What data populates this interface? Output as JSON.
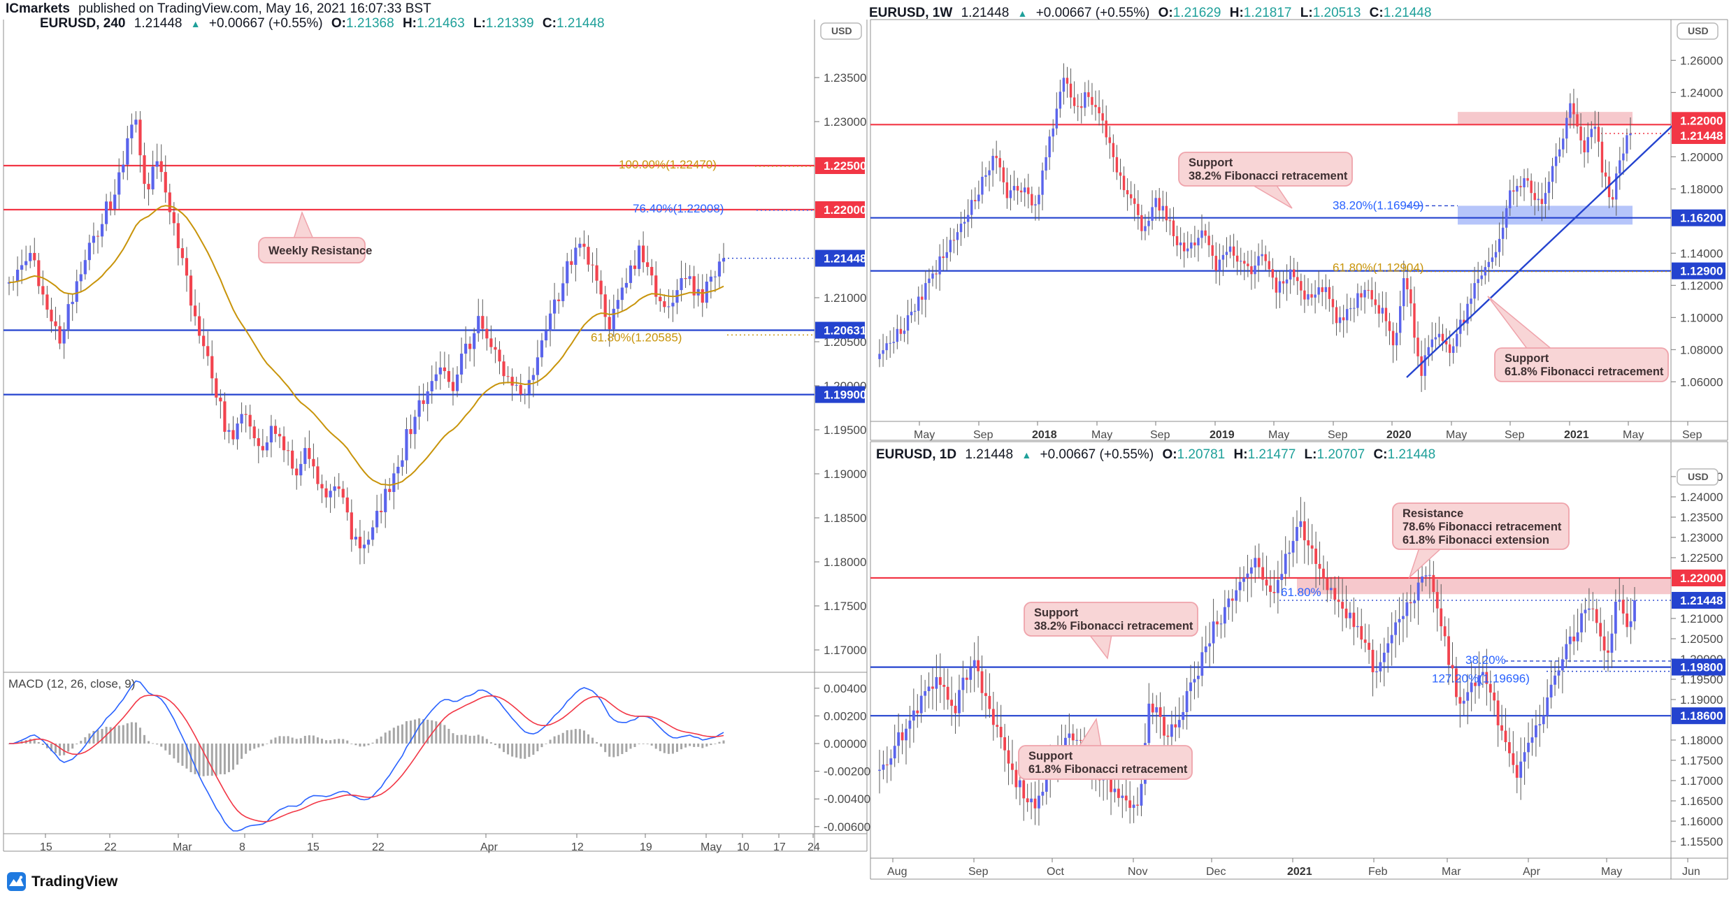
{
  "header": {
    "byline_bold": "ICmarkets",
    "byline_rest": " published on TradingView.com, May 16, 2021 16:07:33 BST"
  },
  "logo_text": "TradingView",
  "currency_button": "USD",
  "macd_title": "MACD (12, 26, close, 9)",
  "colors": {
    "up_candle": "#5a64ec",
    "down_candle": "#f2434e",
    "ma_line": "#c8940a",
    "red_line": "#f23645",
    "blue_line": "#2443cf",
    "gold_text": "#c8940a",
    "blue_text": "#2962ff",
    "teal": "#1fa09a",
    "callout_fill": "#f8d5d6",
    "callout_border": "#efa3ab",
    "pink_zone": "rgba(239,154,163,0.55)",
    "blue_zone": "rgba(109,140,245,0.5)",
    "macd_line": "#2962ff",
    "signal_line": "#f23645",
    "hist": "#6b6b6b"
  },
  "chart_data": [
    {
      "id": "h4",
      "type": "candlestick",
      "symbol": "EURUSD",
      "timeframe": "240",
      "header": {
        "symbol": "EURUSD, 240",
        "price": "1.21448",
        "up": "▲",
        "change": "+0.00667 (+0.55%)",
        "o_label": "O:",
        "o": "1.21368",
        "h_label": "H:",
        "h": "1.21463",
        "l_label": "L:",
        "l": "1.21339",
        "c_label": "C:",
        "c": "1.21448"
      },
      "n": 170,
      "last": 1.21448,
      "anchors": [
        [
          0,
          1.2115
        ],
        [
          0.03,
          1.2148
        ],
        [
          0.055,
          1.2085
        ],
        [
          0.07,
          1.2053
        ],
        [
          0.1,
          1.2135
        ],
        [
          0.13,
          1.219
        ],
        [
          0.155,
          1.2235
        ],
        [
          0.175,
          1.2308
        ],
        [
          0.19,
          1.222
        ],
        [
          0.21,
          1.2258
        ],
        [
          0.23,
          1.218
        ],
        [
          0.25,
          1.211
        ],
        [
          0.27,
          1.205
        ],
        [
          0.29,
          1.199
        ],
        [
          0.31,
          1.1935
        ],
        [
          0.33,
          1.1968
        ],
        [
          0.35,
          1.192
        ],
        [
          0.37,
          1.1955
        ],
        [
          0.4,
          1.19
        ],
        [
          0.42,
          1.1928
        ],
        [
          0.44,
          1.1868
        ],
        [
          0.46,
          1.1885
        ],
        [
          0.48,
          1.183
        ],
        [
          0.5,
          1.1818
        ],
        [
          0.52,
          1.186
        ],
        [
          0.54,
          1.19
        ],
        [
          0.56,
          1.195
        ],
        [
          0.58,
          1.199
        ],
        [
          0.6,
          1.2028
        ],
        [
          0.62,
          1.2
        ],
        [
          0.64,
          1.204
        ],
        [
          0.66,
          1.2078
        ],
        [
          0.68,
          1.204
        ],
        [
          0.7,
          1.2
        ],
        [
          0.72,
          1.1982
        ],
        [
          0.74,
          1.203
        ],
        [
          0.76,
          1.208
        ],
        [
          0.78,
          1.213
        ],
        [
          0.8,
          1.2165
        ],
        [
          0.82,
          1.2118
        ],
        [
          0.84,
          1.2066
        ],
        [
          0.86,
          1.211
        ],
        [
          0.88,
          1.2152
        ],
        [
          0.9,
          1.2118
        ],
        [
          0.92,
          1.2082
        ],
        [
          0.94,
          1.2128
        ],
        [
          0.97,
          1.2098
        ],
        [
          1,
          1.2145
        ]
      ],
      "axis_labels": [
        {
          "t": "1.23500",
          "p": 1.235
        },
        {
          "t": "1.23000",
          "p": 1.23
        },
        {
          "t": "1.21000",
          "p": 1.21
        },
        {
          "t": "1.20500",
          "p": 1.205
        },
        {
          "t": "1.20000",
          "p": 1.2
        },
        {
          "t": "1.19500",
          "p": 1.195
        },
        {
          "t": "1.19000",
          "p": 1.19
        },
        {
          "t": "1.18500",
          "p": 1.185
        },
        {
          "t": "1.18000",
          "p": 1.18
        },
        {
          "t": "1.17500",
          "p": 1.175
        },
        {
          "t": "1.17000",
          "p": 1.17
        }
      ],
      "tags": [
        {
          "t": "1.22500",
          "p": 1.225,
          "c": "red"
        },
        {
          "t": "1.22000",
          "p": 1.22,
          "c": "red"
        },
        {
          "t": "1.21448",
          "p": 1.21448,
          "c": "blue"
        },
        {
          "t": "1.20631",
          "p": 1.20631,
          "c": "blue"
        },
        {
          "t": "1.19900",
          "p": 1.199,
          "c": "blue"
        }
      ],
      "hlines": [
        {
          "p": 1.225,
          "c": "red",
          "s": "solid"
        },
        {
          "p": 1.22,
          "c": "red",
          "s": "solid"
        },
        {
          "p": 1.20631,
          "c": "blue",
          "s": "solid"
        },
        {
          "p": 1.199,
          "c": "blue",
          "s": "solid"
        },
        {
          "p": 1.21448,
          "c": "blue",
          "s": "dotted"
        }
      ],
      "fib_texts": [
        {
          "t": "100.00%(1.22470)",
          "p": 1.225,
          "c": "gold"
        },
        {
          "t": "76.40%(1.22008)",
          "p": 1.22,
          "c": "blue"
        },
        {
          "t": "61.80%(1.20585)",
          "p": 1.20585,
          "c": "gold"
        }
      ],
      "zones": [],
      "callouts": [
        {
          "lines": [
            "Weekly Resistance"
          ]
        }
      ],
      "time_labels": [
        "15",
        "22",
        "Mar",
        "8",
        "15",
        "22",
        "Apr",
        "12",
        "19",
        "May",
        "10",
        "17",
        "24"
      ],
      "macd_ticks": [
        {
          "t": "0.00400",
          "v": 0.004
        },
        {
          "t": "0.00200",
          "v": 0.002
        },
        {
          "t": "0.00000",
          "v": 0
        },
        {
          "t": "-0.00200",
          "v": -0.002
        },
        {
          "t": "-0.00400",
          "v": -0.004
        },
        {
          "t": "-0.00600",
          "v": -0.006
        }
      ]
    },
    {
      "id": "weekly",
      "type": "candlestick",
      "symbol": "EURUSD",
      "timeframe": "1W",
      "header": {
        "symbol": "EURUSD, 1W",
        "price": "1.21448",
        "up": "▲",
        "change": "+0.00667 (+0.55%)",
        "o_label": "O:",
        "o": "1.21629",
        "h_label": "H:",
        "h": "1.21817",
        "l_label": "L:",
        "l": "1.20513",
        "c_label": "C:",
        "c": "1.21448"
      },
      "n": 213,
      "last": 1.21448,
      "anchors": [
        [
          0,
          1.076
        ],
        [
          0.03,
          1.092
        ],
        [
          0.07,
          1.125
        ],
        [
          0.1,
          1.152
        ],
        [
          0.13,
          1.178
        ],
        [
          0.155,
          1.2
        ],
        [
          0.17,
          1.176
        ],
        [
          0.19,
          1.182
        ],
        [
          0.205,
          1.166
        ],
        [
          0.22,
          1.196
        ],
        [
          0.245,
          1.25
        ],
        [
          0.26,
          1.228
        ],
        [
          0.275,
          1.238
        ],
        [
          0.29,
          1.232
        ],
        [
          0.31,
          1.2
        ],
        [
          0.33,
          1.176
        ],
        [
          0.35,
          1.157
        ],
        [
          0.37,
          1.172
        ],
        [
          0.39,
          1.153
        ],
        [
          0.41,
          1.141
        ],
        [
          0.43,
          1.151
        ],
        [
          0.45,
          1.131
        ],
        [
          0.47,
          1.142
        ],
        [
          0.49,
          1.128
        ],
        [
          0.51,
          1.136
        ],
        [
          0.53,
          1.118
        ],
        [
          0.55,
          1.129
        ],
        [
          0.57,
          1.111
        ],
        [
          0.59,
          1.12
        ],
        [
          0.61,
          1.098
        ],
        [
          0.63,
          1.108
        ],
        [
          0.65,
          1.116
        ],
        [
          0.67,
          1.102
        ],
        [
          0.685,
          1.082
        ],
        [
          0.7,
          1.128
        ],
        [
          0.72,
          1.066
        ],
        [
          0.74,
          1.088
        ],
        [
          0.76,
          1.082
        ],
        [
          0.78,
          1.102
        ],
        [
          0.8,
          1.126
        ],
        [
          0.82,
          1.142
        ],
        [
          0.84,
          1.176
        ],
        [
          0.86,
          1.186
        ],
        [
          0.88,
          1.172
        ],
        [
          0.9,
          1.196
        ],
        [
          0.92,
          1.232
        ],
        [
          0.93,
          1.216
        ],
        [
          0.94,
          1.205
        ],
        [
          0.95,
          1.222
        ],
        [
          0.965,
          1.188
        ],
        [
          0.975,
          1.175
        ],
        [
          0.99,
          1.205
        ],
        [
          1,
          1.2145
        ]
      ],
      "axis_labels": [
        {
          "t": "1.26000",
          "p": 1.26
        },
        {
          "t": "1.24000",
          "p": 1.24
        },
        {
          "t": "1.20000",
          "p": 1.2
        },
        {
          "t": "1.18000",
          "p": 1.18
        },
        {
          "t": "1.14000",
          "p": 1.14
        },
        {
          "t": "1.12000",
          "p": 1.12
        },
        {
          "t": "1.10000",
          "p": 1.1
        },
        {
          "t": "1.08000",
          "p": 1.08
        },
        {
          "t": "1.06000",
          "p": 1.06
        }
      ],
      "tags": [
        {
          "t": "1.22000",
          "p": 1.22,
          "c": "red",
          "oy": -6
        },
        {
          "t": "1.21448",
          "p": 1.21448,
          "c": "red",
          "oy": 3
        },
        {
          "t": "1.16200",
          "p": 1.162,
          "c": "blue"
        },
        {
          "t": "1.12900",
          "p": 1.129,
          "c": "blue"
        }
      ],
      "hlines": [
        {
          "p": 1.22,
          "c": "red",
          "s": "solid"
        },
        {
          "p": 1.162,
          "c": "blue",
          "s": "solid"
        },
        {
          "p": 1.129,
          "c": "blue",
          "s": "solid"
        },
        {
          "p": 1.16949,
          "c": "blue",
          "s": "dashed"
        },
        {
          "p": 1.21448,
          "c": "red",
          "s": "dotted"
        }
      ],
      "fib_texts": [
        {
          "t": "38.20%(1.16949)",
          "p": 1.16949,
          "c": "blue"
        },
        {
          "t": "61.80%(1.12904)",
          "p": 1.129,
          "c": "gold"
        }
      ],
      "zones": [
        {
          "p1": 1.2279,
          "p2": 1.22,
          "c": "pink"
        },
        {
          "p1": 1.1695,
          "p2": 1.1578,
          "c": "blue"
        }
      ],
      "callouts": [
        {
          "lines": [
            "Support",
            "38.2% Fibonacci retracement"
          ]
        },
        {
          "lines": [
            "Support",
            "61.8% Fibonacci retracement"
          ]
        }
      ],
      "time_labels": [
        "May",
        "Sep",
        "2018",
        "May",
        "Sep",
        "2019",
        "May",
        "Sep",
        "2020",
        "May",
        "Sep",
        "2021",
        "May",
        "Sep"
      ]
    },
    {
      "id": "daily",
      "type": "candlestick",
      "symbol": "EURUSD",
      "timeframe": "1D",
      "header": {
        "symbol": "EURUSD, 1D",
        "price": "1.21448",
        "up": "▲",
        "change": "+0.00667 (+0.55%)",
        "o_label": "O:",
        "o": "1.20781",
        "h_label": "H:",
        "h": "1.21477",
        "l_label": "L:",
        "l": "1.20707",
        "c_label": "C:",
        "c": "1.21448"
      },
      "n": 200,
      "last": 1.21448,
      "anchors": [
        [
          0,
          1.172
        ],
        [
          0.04,
          1.185
        ],
        [
          0.075,
          1.195
        ],
        [
          0.1,
          1.188
        ],
        [
          0.123,
          1.2
        ],
        [
          0.15,
          1.186
        ],
        [
          0.18,
          1.17
        ],
        [
          0.205,
          1.1625
        ],
        [
          0.23,
          1.176
        ],
        [
          0.253,
          1.1825
        ],
        [
          0.28,
          1.1735
        ],
        [
          0.31,
          1.168
        ],
        [
          0.341,
          1.1615
        ],
        [
          0.358,
          1.19
        ],
        [
          0.38,
          1.181
        ],
        [
          0.4,
          1.187
        ],
        [
          0.42,
          1.196
        ],
        [
          0.44,
          1.207
        ],
        [
          0.461,
          1.213
        ],
        [
          0.48,
          1.218
        ],
        [
          0.5,
          1.224
        ],
        [
          0.52,
          1.217
        ],
        [
          0.556,
          1.234
        ],
        [
          0.58,
          1.223
        ],
        [
          0.6,
          1.216
        ],
        [
          0.62,
          1.211
        ],
        [
          0.64,
          1.205
        ],
        [
          0.659,
          1.196
        ],
        [
          0.68,
          1.206
        ],
        [
          0.7,
          1.213
        ],
        [
          0.727,
          1.223
        ],
        [
          0.745,
          1.208
        ],
        [
          0.768,
          1.188
        ],
        [
          0.785,
          1.193
        ],
        [
          0.799,
          1.1985
        ],
        [
          0.82,
          1.184
        ],
        [
          0.843,
          1.171
        ],
        [
          0.86,
          1.178
        ],
        [
          0.88,
          1.187
        ],
        [
          0.9,
          1.198
        ],
        [
          0.92,
          1.206
        ],
        [
          0.942,
          1.214
        ],
        [
          0.962,
          1.1995
        ],
        [
          0.979,
          1.2175
        ],
        [
          0.99,
          1.206
        ],
        [
          1,
          1.2145
        ]
      ],
      "axis_labels": [
        {
          "t": "1.24500",
          "p": 1.245
        },
        {
          "t": "1.24000",
          "p": 1.24
        },
        {
          "t": "1.23500",
          "p": 1.235
        },
        {
          "t": "1.23000",
          "p": 1.23
        },
        {
          "t": "1.22500",
          "p": 1.225
        },
        {
          "t": "1.21000",
          "p": 1.21
        },
        {
          "t": "1.20500",
          "p": 1.205
        },
        {
          "t": "1.20000",
          "p": 1.2
        },
        {
          "t": "1.19500",
          "p": 1.195
        },
        {
          "t": "1.19000",
          "p": 1.19
        },
        {
          "t": "1.18000",
          "p": 1.18
        },
        {
          "t": "1.17500",
          "p": 1.175
        },
        {
          "t": "1.17000",
          "p": 1.17
        },
        {
          "t": "1.16500",
          "p": 1.165
        },
        {
          "t": "1.16000",
          "p": 1.16
        },
        {
          "t": "1.15500",
          "p": 1.155
        }
      ],
      "tags": [
        {
          "t": "1.22000",
          "p": 1.22,
          "c": "red"
        },
        {
          "t": "1.21448",
          "p": 1.21448,
          "c": "blue"
        },
        {
          "t": "1.19800",
          "p": 1.198,
          "c": "blue"
        },
        {
          "t": "1.18600",
          "p": 1.186,
          "c": "blue"
        }
      ],
      "hlines": [
        {
          "p": 1.22,
          "c": "red",
          "s": "solid"
        },
        {
          "p": 1.198,
          "c": "blue",
          "s": "solid"
        },
        {
          "p": 1.186,
          "c": "blue",
          "s": "solid"
        },
        {
          "p": 1.21448,
          "c": "blue",
          "s": "dotted"
        },
        {
          "p": 1.1995,
          "c": "blue",
          "s": "dashed"
        },
        {
          "p": 1.19696,
          "c": "blue",
          "s": "dotted"
        }
      ],
      "fib_texts": [
        {
          "t": "61.80%",
          "p": 1.21448,
          "c": "blue"
        },
        {
          "t": "38.20%",
          "p": 1.1995,
          "c": "blue"
        },
        {
          "t": "127.20%(1.19696)",
          "p": 1.19696,
          "c": "blue"
        }
      ],
      "zones": [
        {
          "p1": 1.22,
          "p2": 1.216,
          "c": "pink"
        }
      ],
      "callouts": [
        {
          "lines": [
            "Resistance",
            "78.6% Fibonacci retracement",
            "61.8% Fibonacci extension"
          ]
        },
        {
          "lines": [
            "Support",
            "38.2% Fibonacci retracement"
          ]
        },
        {
          "lines": [
            "Support",
            "61.8% Fibonacci retracement"
          ]
        }
      ],
      "time_labels": [
        "Aug",
        "Sep",
        "Oct",
        "Nov",
        "Dec",
        "2021",
        "Feb",
        "Mar",
        "Apr",
        "May",
        "Jun"
      ]
    }
  ]
}
